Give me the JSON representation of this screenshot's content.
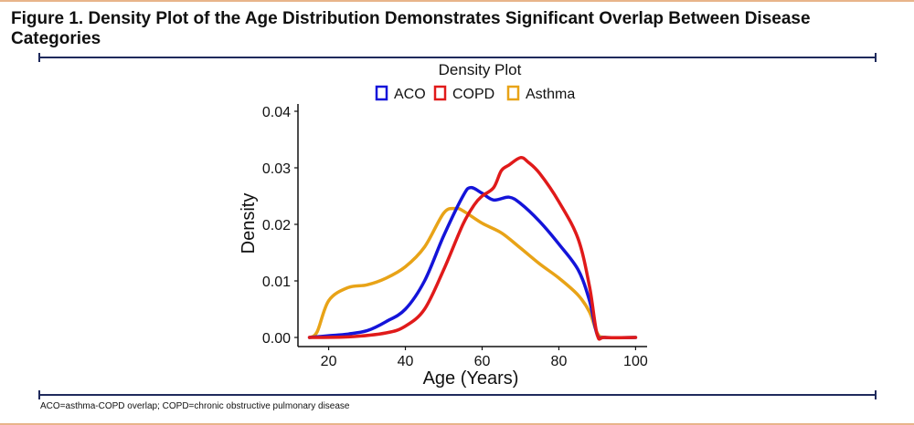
{
  "figure": {
    "title": "Figure 1. Density Plot of the Age Distribution Demonstrates Significant Overlap Between Disease Categories",
    "footnote": "ACO=asthma-COPD overlap; COPD=chronic obstructive pulmonary disease"
  },
  "colors": {
    "rule": "#1f2a5c",
    "ACO": "#1414d9",
    "COPD": "#e01a1a",
    "Asthma": "#e8a317"
  },
  "chart_data": {
    "type": "line",
    "title": "Density Plot",
    "xlabel": "Age (Years)",
    "ylabel": "Density",
    "xlim": [
      12,
      103
    ],
    "ylim": [
      0,
      0.04
    ],
    "xticks": [
      20,
      40,
      60,
      80,
      100
    ],
    "yticks": [
      "0.00",
      "0.01",
      "0.02",
      "0.03",
      "0.04"
    ],
    "legend": "top",
    "grid": false,
    "series": [
      {
        "name": "ACO",
        "color": "#1414d9",
        "x": [
          15,
          20,
          25,
          30,
          35,
          40,
          45,
          50,
          55,
          57,
          60,
          63,
          67,
          70,
          75,
          80,
          85,
          88,
          90,
          92,
          100
        ],
        "y": [
          0,
          0.0003,
          0.0006,
          0.0012,
          0.0028,
          0.005,
          0.01,
          0.018,
          0.025,
          0.0265,
          0.0255,
          0.0243,
          0.0248,
          0.0237,
          0.0205,
          0.0165,
          0.012,
          0.0065,
          0.0005,
          0,
          0
        ]
      },
      {
        "name": "COPD",
        "color": "#e01a1a",
        "x": [
          15,
          25,
          35,
          40,
          45,
          50,
          55,
          58,
          60,
          63,
          65,
          67,
          70,
          72,
          75,
          80,
          85,
          88,
          90,
          92,
          100
        ],
        "y": [
          0,
          0.0001,
          0.0008,
          0.002,
          0.005,
          0.012,
          0.02,
          0.0235,
          0.025,
          0.0265,
          0.0295,
          0.0305,
          0.0318,
          0.031,
          0.029,
          0.024,
          0.0175,
          0.009,
          0.0005,
          0,
          0
        ]
      },
      {
        "name": "Asthma",
        "color": "#e8a317",
        "x": [
          15,
          17,
          20,
          25,
          30,
          35,
          40,
          45,
          50,
          53,
          55,
          60,
          65,
          70,
          75,
          80,
          85,
          88,
          90,
          92,
          100
        ],
        "y": [
          0,
          0.001,
          0.0065,
          0.0088,
          0.0093,
          0.0105,
          0.0125,
          0.016,
          0.022,
          0.0228,
          0.0224,
          0.0202,
          0.0185,
          0.0158,
          0.013,
          0.0105,
          0.0075,
          0.0045,
          0.0008,
          0,
          0
        ]
      }
    ]
  }
}
